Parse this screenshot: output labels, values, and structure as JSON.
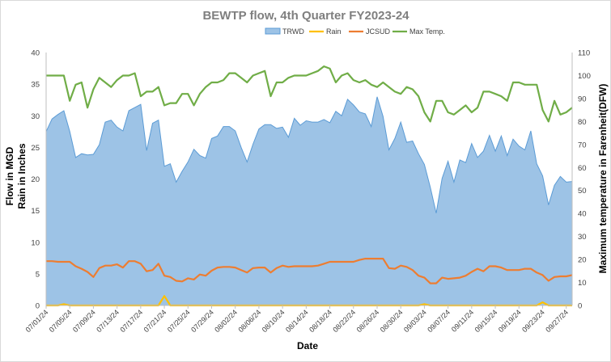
{
  "chart_data": {
    "type": "area",
    "title": "BEWTP flow, 4th Quarter FY2023-24",
    "xlabel": "Date",
    "ylabel_lines": [
      "Flow in MGD",
      "Rain in Inches"
    ],
    "y2label": "Maximum temperature in Farenheit(DFW)",
    "ylim": [
      0,
      40
    ],
    "y2lim": [
      0,
      110
    ],
    "yticks": [
      0,
      5,
      10,
      15,
      20,
      25,
      30,
      35,
      40
    ],
    "y2ticks": [
      0,
      10,
      20,
      30,
      40,
      50,
      60,
      70,
      80,
      90,
      100,
      110
    ],
    "x_tick_labels": [
      "07/01/24",
      "07/05/24",
      "07/09/24",
      "07/13/24",
      "07/17/24",
      "07/21/24",
      "07/25/24",
      "07/29/24",
      "08/02/24",
      "08/06/24",
      "08/10/24",
      "08/14/24",
      "08/18/24",
      "08/22/24",
      "08/26/24",
      "08/30/24",
      "09/03/24",
      "09/07/24",
      "09/11/24",
      "09/15/24",
      "09/19/24",
      "09/23/24",
      "09/27/24"
    ],
    "colors": {
      "TRWD": "#9dc3e6",
      "TRWD_line": "#5b9bd5",
      "Rain": "#ffc000",
      "JCSUD": "#ed7d31",
      "MaxTemp": "#70ad47"
    },
    "series": [
      {
        "name": "TRWD",
        "kind": "area",
        "axis": "left",
        "values": [
          27.5,
          29.5,
          30.2,
          30.8,
          27.5,
          23.4,
          24.0,
          23.8,
          23.9,
          25.4,
          29.0,
          29.3,
          28.2,
          27.6,
          30.8,
          31.3,
          31.8,
          24.5,
          28.8,
          29.3,
          22.0,
          22.4,
          19.5,
          21.2,
          22.7,
          24.7,
          23.7,
          23.3,
          26.4,
          26.8,
          28.3,
          28.3,
          27.6,
          25.0,
          22.7,
          25.5,
          27.9,
          28.6,
          28.6,
          28.0,
          28.2,
          26.6,
          29.6,
          28.5,
          29.2,
          29.0,
          29.0,
          29.4,
          28.9,
          30.7,
          30.0,
          32.6,
          31.7,
          30.6,
          30.3,
          28.3,
          33.0,
          29.9,
          24.6,
          26.4,
          29.0,
          25.8,
          26.0,
          24.0,
          22.3,
          18.7,
          14.6,
          20.1,
          22.8,
          19.5,
          23.0,
          22.6,
          25.6,
          23.4,
          24.4,
          26.9,
          24.4,
          26.8,
          23.7,
          26.3,
          25.2,
          24.6,
          27.6,
          22.4,
          20.5,
          15.9,
          19.0,
          20.4,
          19.5,
          19.6
        ]
      },
      {
        "name": "Rain",
        "kind": "line",
        "axis": "left",
        "values": [
          0,
          0,
          0,
          0.2,
          0,
          0,
          0,
          0,
          0,
          0,
          0,
          0,
          0,
          0,
          0,
          0,
          0,
          0,
          0,
          0,
          1.5,
          0,
          0,
          0,
          0,
          0,
          0,
          0,
          0,
          0,
          0,
          0,
          0,
          0,
          0,
          0,
          0,
          0,
          0,
          0,
          0,
          0,
          0,
          0,
          0,
          0,
          0,
          0,
          0,
          0,
          0,
          0,
          0,
          0,
          0,
          0,
          0,
          0,
          0,
          0,
          0,
          0,
          0,
          0,
          0.2,
          0,
          0,
          0,
          0,
          0,
          0,
          0,
          0,
          0,
          0,
          0,
          0,
          0,
          0,
          0,
          0,
          0,
          0,
          0,
          0.5,
          0,
          0,
          0,
          0,
          0
        ]
      },
      {
        "name": "JCSUD",
        "kind": "line",
        "axis": "left",
        "values": [
          7.0,
          7.0,
          6.9,
          6.9,
          6.9,
          6.2,
          5.8,
          5.3,
          4.5,
          5.9,
          6.3,
          6.3,
          6.5,
          6.0,
          7.0,
          7.0,
          6.6,
          5.4,
          5.6,
          6.6,
          4.7,
          4.5,
          3.9,
          3.8,
          4.3,
          4.1,
          4.9,
          4.7,
          5.5,
          6.0,
          6.1,
          6.1,
          6.0,
          5.6,
          5.2,
          5.9,
          6.0,
          6.0,
          5.2,
          5.9,
          6.3,
          6.1,
          6.2,
          6.2,
          6.2,
          6.2,
          6.3,
          6.6,
          6.9,
          6.9,
          6.9,
          6.9,
          6.9,
          7.2,
          7.4,
          7.4,
          7.4,
          7.4,
          5.9,
          5.8,
          6.3,
          6.1,
          5.6,
          4.7,
          4.4,
          3.5,
          3.5,
          4.4,
          4.2,
          4.3,
          4.4,
          4.7,
          5.3,
          5.8,
          5.4,
          6.2,
          6.2,
          6.0,
          5.6,
          5.6,
          5.6,
          5.8,
          5.8,
          5.2,
          4.8,
          3.9,
          4.5,
          4.6,
          4.6,
          4.8
        ]
      },
      {
        "name": "Max Temp.",
        "kind": "line",
        "axis": "right",
        "values": [
          100,
          100,
          100,
          100,
          89,
          96,
          97,
          86,
          94,
          99,
          97,
          95,
          98,
          100,
          100,
          101,
          91,
          93,
          93,
          95,
          87,
          88,
          88,
          92,
          92,
          87,
          92,
          95,
          97,
          97,
          98,
          101,
          101,
          99,
          97,
          100,
          101,
          102,
          91,
          97,
          97,
          99,
          100,
          100,
          100,
          101,
          102,
          104,
          103,
          97,
          100,
          101,
          98,
          97,
          98,
          96,
          95,
          97,
          95,
          93,
          92,
          95,
          94,
          91,
          84,
          80,
          89,
          89,
          84,
          83,
          85,
          87,
          84,
          86,
          93,
          93,
          92,
          91,
          89,
          97,
          97,
          96,
          96,
          96,
          85,
          80,
          89,
          83,
          84,
          86
        ]
      }
    ]
  }
}
